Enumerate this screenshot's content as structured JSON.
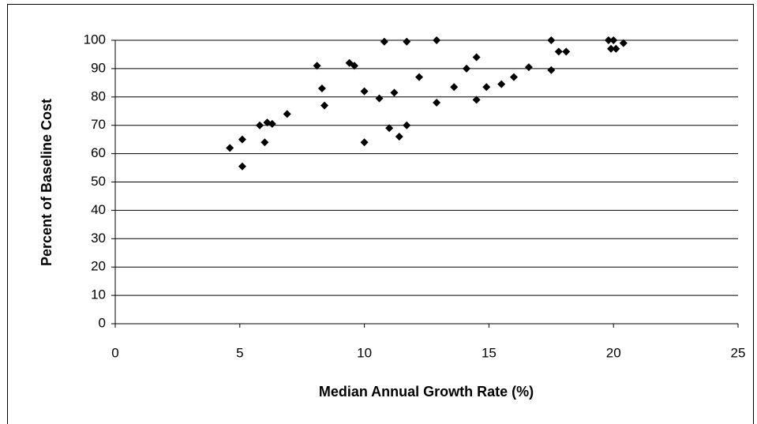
{
  "chart_data": {
    "type": "scatter",
    "x_label": "Median Annual Growth Rate (%)",
    "y_label": "Percent of Baseline Cost",
    "x": [
      4.6,
      5.1,
      5.1,
      5.8,
      6.0,
      6.1,
      6.3,
      6.9,
      8.1,
      8.3,
      8.4,
      9.4,
      9.6,
      10.0,
      10.0,
      10.6,
      10.8,
      11.0,
      11.2,
      11.4,
      11.7,
      11.7,
      12.2,
      12.9,
      12.9,
      13.6,
      14.1,
      14.5,
      14.5,
      14.9,
      15.5,
      16.0,
      16.6,
      17.5,
      17.5,
      17.8,
      18.1,
      19.8,
      20.0,
      19.9,
      20.1,
      20.4
    ],
    "values": [
      62,
      55.5,
      65,
      70,
      64,
      71,
      70.5,
      74,
      91,
      83,
      77,
      92,
      91,
      82,
      64,
      79.5,
      99.5,
      69,
      81.5,
      66,
      99.5,
      70,
      87,
      100,
      78,
      83.5,
      90,
      94,
      79,
      83.5,
      84.5,
      87,
      90.5,
      100,
      89.5,
      96,
      96,
      100,
      100,
      97,
      97,
      99
    ],
    "color": "#000000",
    "xlim": [
      0,
      25
    ],
    "xticks": [
      0,
      5,
      10,
      15,
      20,
      25
    ],
    "ylim": [
      0,
      100
    ],
    "yticks": [
      0,
      10,
      20,
      30,
      40,
      50,
      60,
      70,
      80,
      90,
      100
    ],
    "grid": true
  }
}
